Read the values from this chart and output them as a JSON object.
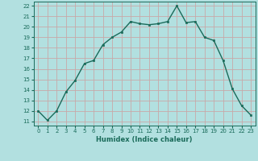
{
  "x": [
    0,
    1,
    2,
    3,
    4,
    5,
    6,
    7,
    8,
    9,
    10,
    11,
    12,
    13,
    14,
    15,
    16,
    17,
    18,
    19,
    20,
    21,
    22,
    23
  ],
  "y": [
    12.0,
    11.1,
    12.0,
    13.8,
    14.9,
    16.5,
    16.8,
    18.3,
    19.0,
    19.5,
    20.5,
    20.3,
    20.2,
    20.3,
    20.5,
    22.0,
    20.4,
    20.5,
    19.0,
    18.7,
    16.8,
    14.1,
    12.5,
    11.6
  ],
  "line_color": "#1a6b5a",
  "marker": "s",
  "marker_size": 2.0,
  "bg_color": "#b2e0e0",
  "grid_color": "#c8a8a8",
  "xlabel": "Humidex (Indice chaleur)",
  "ylim": [
    10.6,
    22.4
  ],
  "xlim": [
    -0.5,
    23.5
  ],
  "yticks": [
    11,
    12,
    13,
    14,
    15,
    16,
    17,
    18,
    19,
    20,
    21,
    22
  ],
  "xticks": [
    0,
    1,
    2,
    3,
    4,
    5,
    6,
    7,
    8,
    9,
    10,
    11,
    12,
    13,
    14,
    15,
    16,
    17,
    18,
    19,
    20,
    21,
    22,
    23
  ],
  "tick_fontsize": 5.0,
  "xlabel_fontsize": 6.0
}
